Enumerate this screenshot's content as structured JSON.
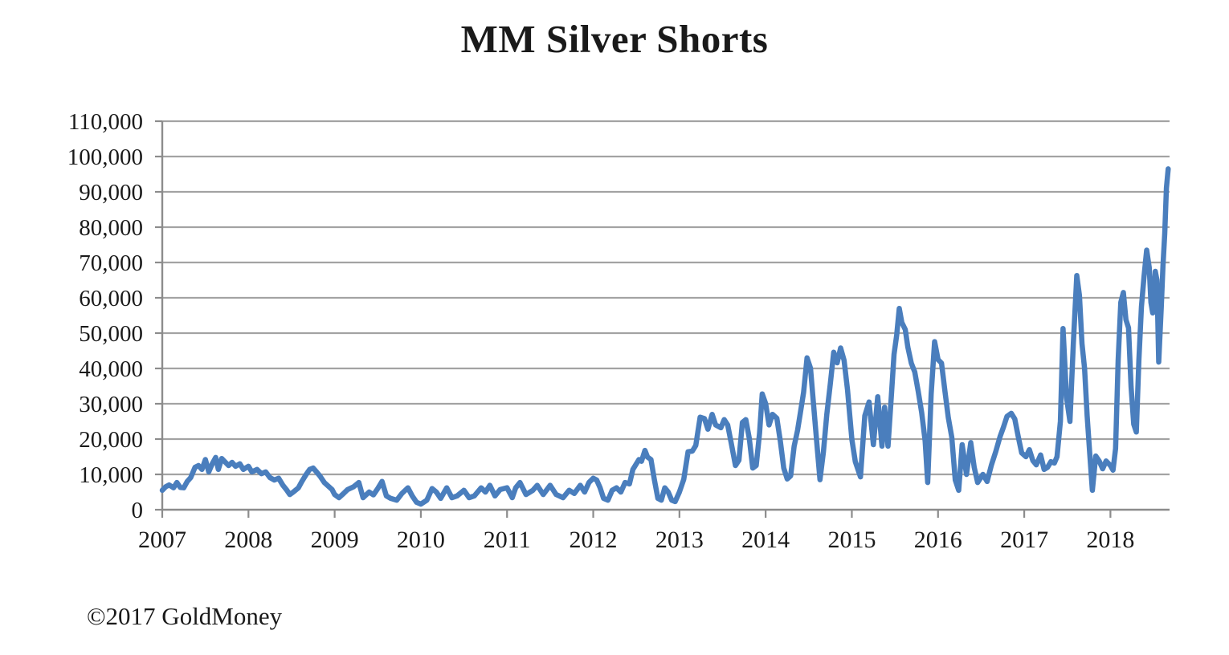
{
  "title": "MM Silver Shorts",
  "footer": "©2017 GoldMoney",
  "colors": {
    "line": "#4a7ebd",
    "grid": "#a3a3a3",
    "axis": "#8c8c8c",
    "text": "#1a1a1a",
    "background": "#ffffff"
  },
  "chart_data": {
    "type": "line",
    "title": "MM Silver Shorts",
    "xlabel": "",
    "ylabel": "",
    "legend": "none",
    "grid": "horizontal",
    "xlim": [
      2007,
      2018.686
    ],
    "ylim": [
      0,
      110000
    ],
    "x_ticks": [
      2007,
      2008,
      2009,
      2010,
      2011,
      2012,
      2013,
      2014,
      2015,
      2016,
      2017,
      2018
    ],
    "x_tick_labels": [
      "2007",
      "2008",
      "2009",
      "2010",
      "2011",
      "2012",
      "2013",
      "2014",
      "2015",
      "2016",
      "2017",
      "2018"
    ],
    "y_ticks": [
      0,
      10000,
      20000,
      30000,
      40000,
      50000,
      60000,
      70000,
      80000,
      90000,
      100000,
      110000
    ],
    "y_tick_labels": [
      "0",
      "10,000",
      "20,000",
      "30,000",
      "40,000",
      "50,000",
      "60,000",
      "70,000",
      "80,000",
      "90,000",
      "100,000",
      "110,000"
    ],
    "series": [
      {
        "name": "MM Silver Shorts",
        "points": [
          [
            2007.0,
            5500
          ],
          [
            2007.04,
            6500
          ],
          [
            2007.08,
            7000
          ],
          [
            2007.13,
            6200
          ],
          [
            2007.17,
            7700
          ],
          [
            2007.21,
            6300
          ],
          [
            2007.25,
            6200
          ],
          [
            2007.29,
            8000
          ],
          [
            2007.33,
            9100
          ],
          [
            2007.38,
            12000
          ],
          [
            2007.42,
            12500
          ],
          [
            2007.46,
            11400
          ],
          [
            2007.5,
            14200
          ],
          [
            2007.54,
            10700
          ],
          [
            2007.58,
            13000
          ],
          [
            2007.62,
            14800
          ],
          [
            2007.65,
            11400
          ],
          [
            2007.69,
            14500
          ],
          [
            2007.73,
            13500
          ],
          [
            2007.77,
            12500
          ],
          [
            2007.81,
            13400
          ],
          [
            2007.85,
            12300
          ],
          [
            2007.9,
            13000
          ],
          [
            2007.94,
            11400
          ],
          [
            2008.0,
            12300
          ],
          [
            2008.04,
            10700
          ],
          [
            2008.1,
            11400
          ],
          [
            2008.15,
            10200
          ],
          [
            2008.2,
            10700
          ],
          [
            2008.25,
            9100
          ],
          [
            2008.3,
            8400
          ],
          [
            2008.35,
            8900
          ],
          [
            2008.4,
            6900
          ],
          [
            2008.44,
            5700
          ],
          [
            2008.48,
            4300
          ],
          [
            2008.52,
            5000
          ],
          [
            2008.58,
            6200
          ],
          [
            2008.62,
            8000
          ],
          [
            2008.67,
            10000
          ],
          [
            2008.71,
            11400
          ],
          [
            2008.75,
            11800
          ],
          [
            2008.79,
            10700
          ],
          [
            2008.83,
            9500
          ],
          [
            2008.88,
            7700
          ],
          [
            2008.93,
            6600
          ],
          [
            2008.97,
            5700
          ],
          [
            2009.0,
            4300
          ],
          [
            2009.05,
            3400
          ],
          [
            2009.1,
            4500
          ],
          [
            2009.15,
            5700
          ],
          [
            2009.22,
            6500
          ],
          [
            2009.28,
            7700
          ],
          [
            2009.33,
            3400
          ],
          [
            2009.4,
            5000
          ],
          [
            2009.45,
            4200
          ],
          [
            2009.5,
            6000
          ],
          [
            2009.55,
            8000
          ],
          [
            2009.6,
            3900
          ],
          [
            2009.65,
            3200
          ],
          [
            2009.72,
            2700
          ],
          [
            2009.78,
            4600
          ],
          [
            2009.85,
            6200
          ],
          [
            2009.9,
            3900
          ],
          [
            2009.95,
            2100
          ],
          [
            2010.0,
            1600
          ],
          [
            2010.07,
            2700
          ],
          [
            2010.13,
            6000
          ],
          [
            2010.18,
            5000
          ],
          [
            2010.23,
            3200
          ],
          [
            2010.3,
            6200
          ],
          [
            2010.36,
            3400
          ],
          [
            2010.42,
            3900
          ],
          [
            2010.5,
            5500
          ],
          [
            2010.56,
            3400
          ],
          [
            2010.62,
            3900
          ],
          [
            2010.7,
            6200
          ],
          [
            2010.75,
            5000
          ],
          [
            2010.8,
            6900
          ],
          [
            2010.86,
            3900
          ],
          [
            2010.92,
            5700
          ],
          [
            2011.0,
            6200
          ],
          [
            2011.06,
            3400
          ],
          [
            2011.1,
            6200
          ],
          [
            2011.15,
            7700
          ],
          [
            2011.22,
            4300
          ],
          [
            2011.3,
            5500
          ],
          [
            2011.35,
            6900
          ],
          [
            2011.42,
            4300
          ],
          [
            2011.5,
            6900
          ],
          [
            2011.57,
            4300
          ],
          [
            2011.65,
            3400
          ],
          [
            2011.72,
            5500
          ],
          [
            2011.78,
            4600
          ],
          [
            2011.85,
            6900
          ],
          [
            2011.9,
            5000
          ],
          [
            2011.95,
            7700
          ],
          [
            2012.0,
            8900
          ],
          [
            2012.04,
            8400
          ],
          [
            2012.08,
            6200
          ],
          [
            2012.12,
            3200
          ],
          [
            2012.17,
            2700
          ],
          [
            2012.22,
            5500
          ],
          [
            2012.27,
            6200
          ],
          [
            2012.32,
            5000
          ],
          [
            2012.37,
            7700
          ],
          [
            2012.42,
            7300
          ],
          [
            2012.46,
            11400
          ],
          [
            2012.5,
            13000
          ],
          [
            2012.53,
            14200
          ],
          [
            2012.56,
            13700
          ],
          [
            2012.6,
            16800
          ],
          [
            2012.63,
            14900
          ],
          [
            2012.67,
            14200
          ],
          [
            2012.71,
            8400
          ],
          [
            2012.75,
            3200
          ],
          [
            2012.79,
            2700
          ],
          [
            2012.83,
            6200
          ],
          [
            2012.87,
            5000
          ],
          [
            2012.91,
            2700
          ],
          [
            2012.95,
            2300
          ],
          [
            2013.0,
            5000
          ],
          [
            2013.05,
            8600
          ],
          [
            2013.1,
            16400
          ],
          [
            2013.15,
            16600
          ],
          [
            2013.19,
            18200
          ],
          [
            2013.24,
            26200
          ],
          [
            2013.29,
            25800
          ],
          [
            2013.33,
            22800
          ],
          [
            2013.38,
            27000
          ],
          [
            2013.42,
            24000
          ],
          [
            2013.48,
            23200
          ],
          [
            2013.52,
            25500
          ],
          [
            2013.56,
            24000
          ],
          [
            2013.6,
            19000
          ],
          [
            2013.65,
            12500
          ],
          [
            2013.69,
            14000
          ],
          [
            2013.73,
            24700
          ],
          [
            2013.77,
            25500
          ],
          [
            2013.81,
            20200
          ],
          [
            2013.85,
            11800
          ],
          [
            2013.89,
            12500
          ],
          [
            2013.93,
            21700
          ],
          [
            2013.96,
            32800
          ],
          [
            2014.0,
            30000
          ],
          [
            2014.04,
            24000
          ],
          [
            2014.08,
            27000
          ],
          [
            2014.13,
            25900
          ],
          [
            2014.17,
            19500
          ],
          [
            2014.21,
            11800
          ],
          [
            2014.25,
            8700
          ],
          [
            2014.29,
            9600
          ],
          [
            2014.33,
            17900
          ],
          [
            2014.37,
            22500
          ],
          [
            2014.4,
            27000
          ],
          [
            2014.44,
            33200
          ],
          [
            2014.48,
            43000
          ],
          [
            2014.52,
            40100
          ],
          [
            2014.56,
            28700
          ],
          [
            2014.6,
            17200
          ],
          [
            2014.63,
            8500
          ],
          [
            2014.67,
            16400
          ],
          [
            2014.71,
            27000
          ],
          [
            2014.75,
            35500
          ],
          [
            2014.79,
            44600
          ],
          [
            2014.83,
            41600
          ],
          [
            2014.87,
            45800
          ],
          [
            2014.91,
            42300
          ],
          [
            2014.95,
            33900
          ],
          [
            2015.0,
            19900
          ],
          [
            2015.04,
            13600
          ],
          [
            2015.1,
            9300
          ],
          [
            2015.15,
            26600
          ],
          [
            2015.2,
            30500
          ],
          [
            2015.25,
            18400
          ],
          [
            2015.3,
            32000
          ],
          [
            2015.35,
            18000
          ],
          [
            2015.38,
            29000
          ],
          [
            2015.42,
            18000
          ],
          [
            2015.46,
            32700
          ],
          [
            2015.49,
            44000
          ],
          [
            2015.52,
            49400
          ],
          [
            2015.55,
            57000
          ],
          [
            2015.58,
            53000
          ],
          [
            2015.62,
            51000
          ],
          [
            2015.65,
            46000
          ],
          [
            2015.69,
            41500
          ],
          [
            2015.73,
            39000
          ],
          [
            2015.77,
            33500
          ],
          [
            2015.81,
            27500
          ],
          [
            2015.85,
            19500
          ],
          [
            2015.88,
            7700
          ],
          [
            2015.92,
            32700
          ],
          [
            2015.96,
            47600
          ],
          [
            2016.0,
            42500
          ],
          [
            2016.04,
            41500
          ],
          [
            2016.08,
            33500
          ],
          [
            2016.12,
            26000
          ],
          [
            2016.16,
            20500
          ],
          [
            2016.2,
            8400
          ],
          [
            2016.24,
            5500
          ],
          [
            2016.28,
            18400
          ],
          [
            2016.33,
            10000
          ],
          [
            2016.38,
            19000
          ],
          [
            2016.42,
            12000
          ],
          [
            2016.46,
            7700
          ],
          [
            2016.52,
            10000
          ],
          [
            2016.57,
            8000
          ],
          [
            2016.62,
            12700
          ],
          [
            2016.67,
            16500
          ],
          [
            2016.72,
            20700
          ],
          [
            2016.76,
            23400
          ],
          [
            2016.8,
            26400
          ],
          [
            2016.85,
            27300
          ],
          [
            2016.89,
            25700
          ],
          [
            2016.93,
            20700
          ],
          [
            2016.97,
            16100
          ],
          [
            2017.02,
            15000
          ],
          [
            2017.06,
            17000
          ],
          [
            2017.1,
            13900
          ],
          [
            2017.14,
            12700
          ],
          [
            2017.19,
            15500
          ],
          [
            2017.23,
            11400
          ],
          [
            2017.27,
            12000
          ],
          [
            2017.31,
            13600
          ],
          [
            2017.35,
            13200
          ],
          [
            2017.38,
            15000
          ],
          [
            2017.42,
            25000
          ],
          [
            2017.45,
            51300
          ],
          [
            2017.49,
            31800
          ],
          [
            2017.53,
            25000
          ],
          [
            2017.57,
            47000
          ],
          [
            2017.61,
            66300
          ],
          [
            2017.64,
            60700
          ],
          [
            2017.67,
            47000
          ],
          [
            2017.7,
            40000
          ],
          [
            2017.73,
            26600
          ],
          [
            2017.76,
            16000
          ],
          [
            2017.79,
            5500
          ],
          [
            2017.83,
            15200
          ],
          [
            2017.87,
            13800
          ],
          [
            2017.91,
            11600
          ],
          [
            2017.95,
            13800
          ],
          [
            2018.0,
            12500
          ],
          [
            2018.03,
            11200
          ],
          [
            2018.06,
            17300
          ],
          [
            2018.09,
            42300
          ],
          [
            2018.12,
            58700
          ],
          [
            2018.15,
            61500
          ],
          [
            2018.18,
            53800
          ],
          [
            2018.21,
            51500
          ],
          [
            2018.24,
            34800
          ],
          [
            2018.27,
            24200
          ],
          [
            2018.3,
            22000
          ],
          [
            2018.33,
            42300
          ],
          [
            2018.36,
            57500
          ],
          [
            2018.39,
            66000
          ],
          [
            2018.42,
            73500
          ],
          [
            2018.45,
            68600
          ],
          [
            2018.47,
            58700
          ],
          [
            2018.49,
            55700
          ],
          [
            2018.52,
            67500
          ],
          [
            2018.54,
            65000
          ],
          [
            2018.56,
            41800
          ],
          [
            2018.59,
            57500
          ],
          [
            2018.61,
            69000
          ],
          [
            2018.63,
            78200
          ],
          [
            2018.65,
            91100
          ],
          [
            2018.67,
            96500
          ]
        ]
      }
    ]
  }
}
